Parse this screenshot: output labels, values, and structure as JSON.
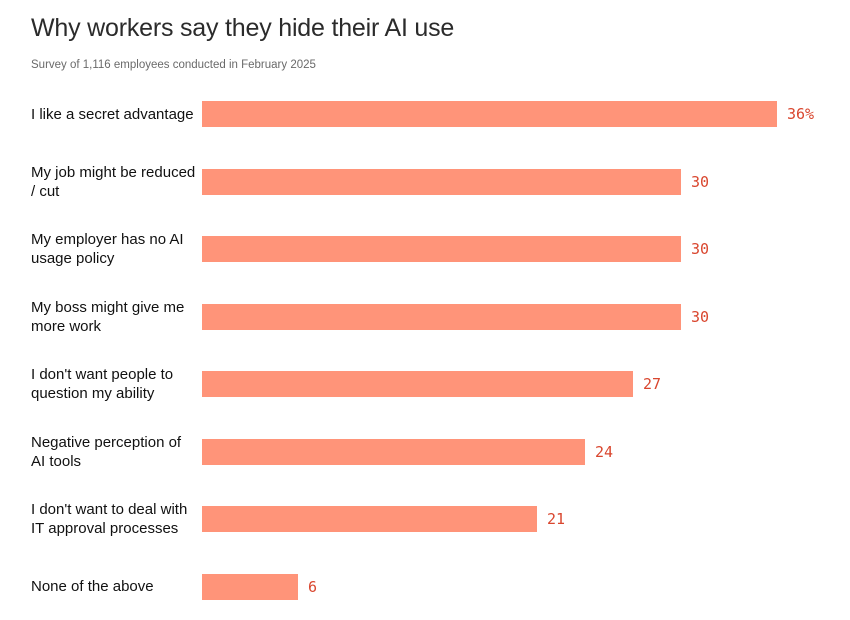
{
  "title": "Why workers say they hide their AI use",
  "subtitle": "Survey of 1,116 employees conducted in February 2025",
  "colors": {
    "bar": "#ff9479",
    "value_label": "#d9462e"
  },
  "chart_data": {
    "type": "bar",
    "orientation": "horizontal",
    "categories": [
      "I like a secret advantage",
      "My job might be reduced / cut",
      "My employer has no AI usage policy",
      "My boss might give me more work",
      "I don't want people to question my ability",
      "Negative perception of AI tools",
      "I don't want to deal with IT approval processes",
      "None of the above"
    ],
    "values": [
      36,
      30,
      30,
      30,
      27,
      24,
      21,
      6
    ],
    "value_labels": [
      "36%",
      "30",
      "30",
      "30",
      "27",
      "24",
      "21",
      "6"
    ],
    "unit": "%",
    "xlim": [
      0,
      36
    ],
    "grid": false,
    "legend": "none"
  }
}
